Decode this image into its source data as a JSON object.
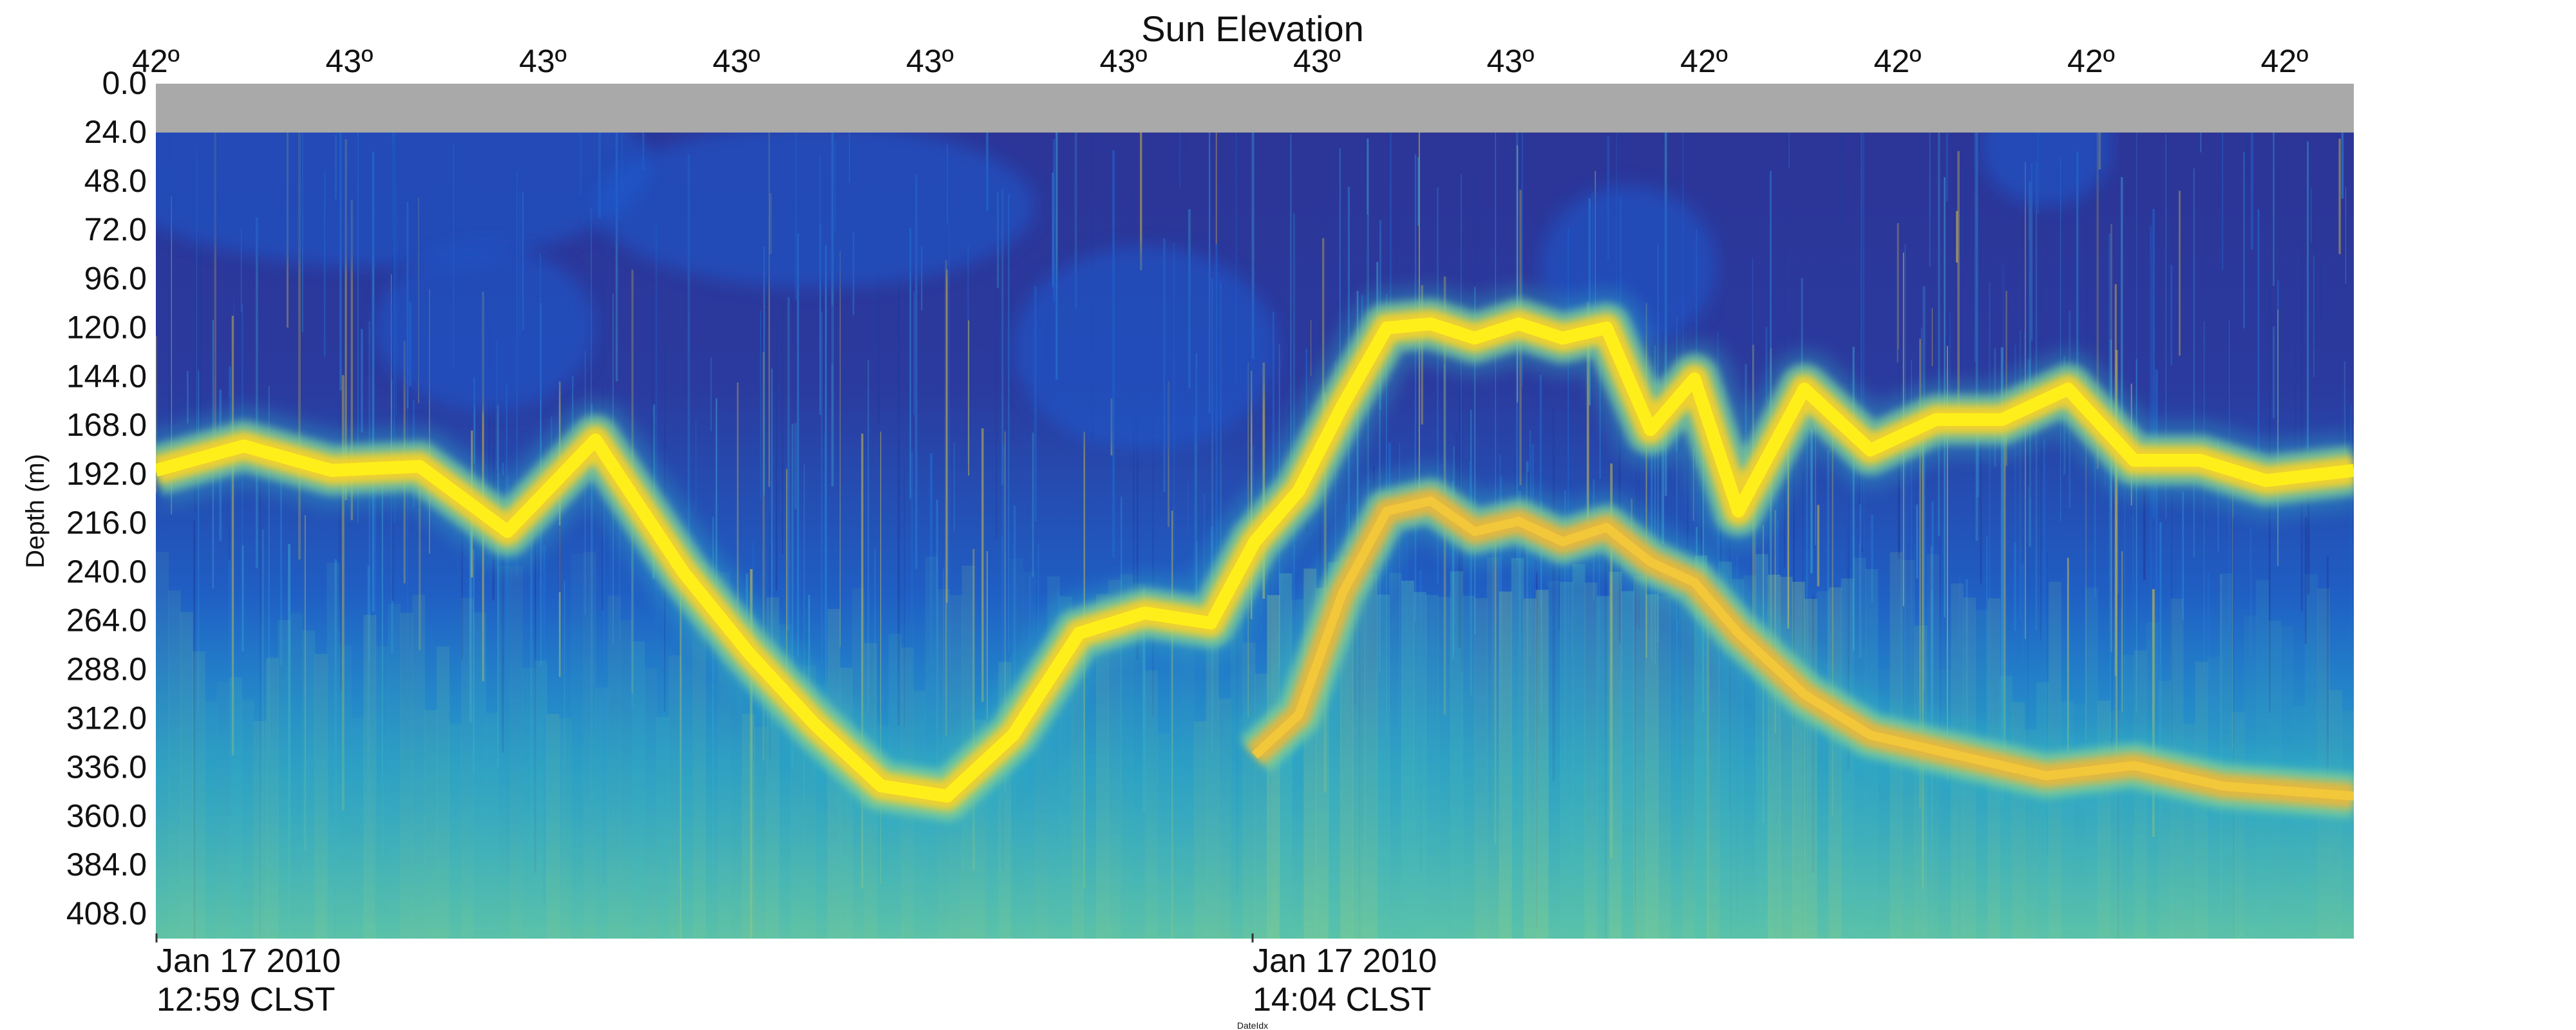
{
  "chart_data": {
    "type": "heatmap",
    "title": "Sun Elevation",
    "ylabel": "Depth (m)",
    "xlabel": "DateIdx",
    "y_ticks": [
      "0.0",
      "24.0",
      "48.0",
      "72.0",
      "96.0",
      "120.0",
      "144.0",
      "168.0",
      "192.0",
      "216.0",
      "240.0",
      "264.0",
      "288.0",
      "312.0",
      "336.0",
      "360.0",
      "384.0",
      "408.0"
    ],
    "ylim": [
      0,
      420
    ],
    "y_inverted": true,
    "sun_elevation_labels": [
      "42º",
      "43º",
      "43º",
      "43º",
      "43º",
      "43º",
      "43º",
      "43º",
      "42º",
      "42º",
      "42º",
      "42º"
    ],
    "time_ticks": [
      {
        "date": "Jan 17 2010",
        "time": "12:59 CLST"
      },
      {
        "date": "Jan 17 2010",
        "time": "14:04 CLST"
      }
    ],
    "no_data_band_depth": [
      0,
      24
    ],
    "colormap": [
      "#2e3192",
      "#1e5bd0",
      "#1f8ad8",
      "#31b3c6",
      "#7ecf9a",
      "#f2c230",
      "#ffee1c"
    ],
    "no_data_color": "#a9a9a9",
    "scattering_layers": [
      {
        "x": [
          0,
          0.04,
          0.08,
          0.12,
          0.16,
          0.2,
          0.24,
          0.27,
          0.3,
          0.33,
          0.36,
          0.39,
          0.42,
          0.45,
          0.48,
          0.5,
          0.52,
          0.54,
          0.56,
          0.58,
          0.6,
          0.62,
          0.64,
          0.66,
          0.68,
          0.7,
          0.72,
          0.75,
          0.78,
          0.81,
          0.84,
          0.87,
          0.9,
          0.93,
          0.96,
          1.0
        ],
        "depth": [
          190,
          178,
          190,
          188,
          220,
          175,
          240,
          280,
          315,
          345,
          350,
          320,
          270,
          260,
          265,
          225,
          200,
          158,
          120,
          118,
          125,
          118,
          125,
          120,
          170,
          145,
          210,
          150,
          180,
          165,
          165,
          150,
          185,
          185,
          195,
          190
        ]
      },
      {
        "x": [
          0.5,
          0.52,
          0.54,
          0.56,
          0.58,
          0.6,
          0.62,
          0.64,
          0.66,
          0.68,
          0.7,
          0.72,
          0.75,
          0.78,
          0.82,
          0.86,
          0.9,
          0.94,
          1.0
        ],
        "depth": [
          330,
          310,
          250,
          210,
          205,
          220,
          215,
          225,
          218,
          235,
          245,
          270,
          300,
          320,
          330,
          340,
          335,
          345,
          350
        ]
      }
    ]
  }
}
